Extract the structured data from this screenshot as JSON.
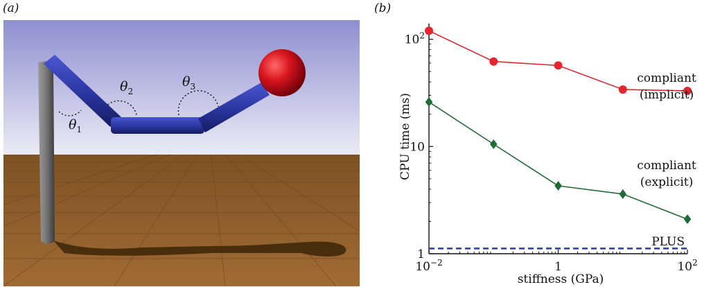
{
  "panels": {
    "a_label": "(a)",
    "b_label": "(b)"
  },
  "scene": {
    "angle_labels": [
      {
        "base": "θ",
        "sub": "1"
      },
      {
        "base": "θ",
        "sub": "2"
      },
      {
        "base": "θ",
        "sub": "3"
      }
    ],
    "colors": {
      "sky_top": "#8f8fcf",
      "sky_bottom": "#e6e6f4",
      "floor": "#8a5a28",
      "links": "#2f3aa8",
      "ball": "#d8182a",
      "pole": "#7a7a7a"
    }
  },
  "chart_data": {
    "type": "line",
    "xlabel": "stiffness (GPa)",
    "ylabel": "CPU time (ms)",
    "x_scale": "log",
    "y_scale": "log",
    "xlim": [
      0.01,
      100
    ],
    "ylim": [
      1,
      140
    ],
    "x_ticks": [
      {
        "value": 0.01,
        "base": "10",
        "exp": "−2"
      },
      {
        "value": 1,
        "base": "1",
        "exp": ""
      },
      {
        "value": 100,
        "base": "10",
        "exp": "2"
      }
    ],
    "y_ticks": [
      {
        "value": 1,
        "base": "1",
        "exp": ""
      },
      {
        "value": 10,
        "base": "10",
        "exp": ""
      },
      {
        "value": 100,
        "base": "10",
        "exp": "2"
      }
    ],
    "grid": false,
    "series": [
      {
        "name": "compliant (implicit)",
        "label_lines": [
          "compliant",
          "(implicit)"
        ],
        "color": "#e3262f",
        "marker": "circle",
        "x": [
          0.01,
          0.1,
          1,
          10,
          100
        ],
        "y": [
          120,
          62,
          57,
          34,
          33
        ]
      },
      {
        "name": "compliant (explicit)",
        "label_lines": [
          "compliant",
          "(explicit)"
        ],
        "color": "#1f6b37",
        "marker": "diamond",
        "x": [
          0.01,
          0.1,
          1,
          10,
          100
        ],
        "y": [
          26,
          10.5,
          4.3,
          3.6,
          2.1
        ]
      },
      {
        "name": "PLUS",
        "label_lines": [
          "PLUS"
        ],
        "color": "#2b45a8",
        "marker": "none",
        "dashed": true,
        "x": [
          0.01,
          100
        ],
        "y": [
          1.12,
          1.12
        ]
      }
    ]
  }
}
